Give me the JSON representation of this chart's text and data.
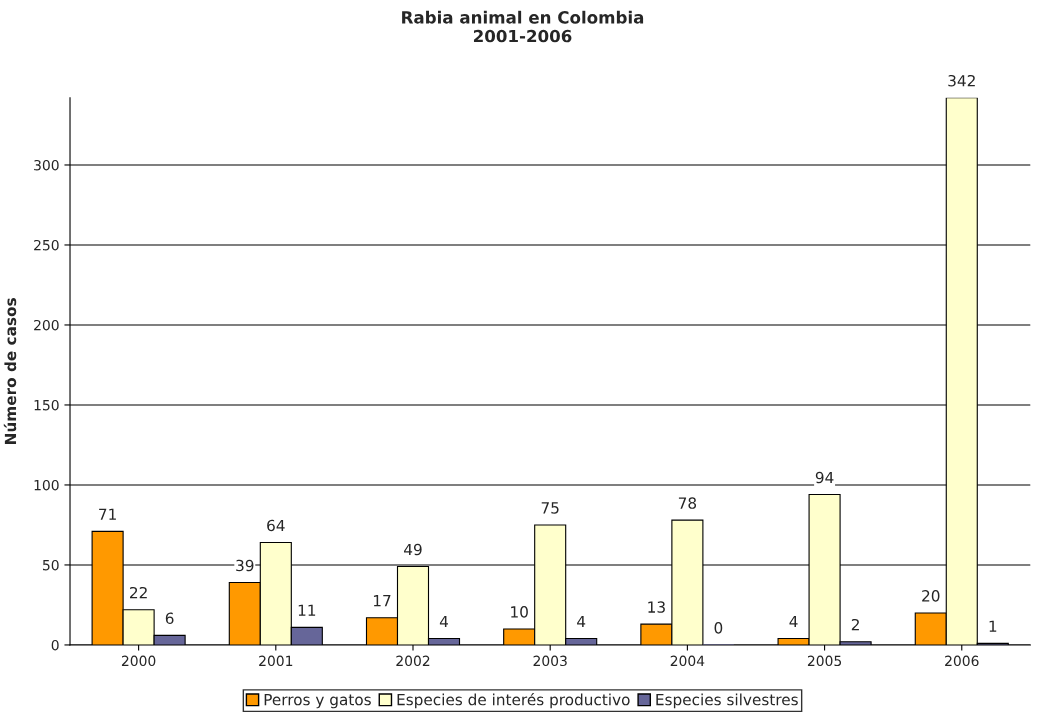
{
  "chart_data": {
    "type": "bar",
    "title": "Rabia animal en Colombia\n2001-2006",
    "ylabel": "Número de casos",
    "categories": [
      "2000",
      "2001",
      "2002",
      "2003",
      "2004",
      "2005",
      "2006"
    ],
    "series": [
      {
        "name": "Perros y gatos",
        "color": "#ff9900",
        "values": [
          71,
          39,
          17,
          10,
          13,
          4,
          20
        ]
      },
      {
        "name": "Especies de interés productivo",
        "color": "#ffffcc",
        "values": [
          22,
          64,
          49,
          75,
          78,
          94,
          342
        ]
      },
      {
        "name": "Especies silvestres",
        "color": "#666699",
        "values": [
          6,
          11,
          4,
          4,
          0,
          2,
          1
        ]
      }
    ],
    "ylim": [
      0,
      342
    ],
    "yticks": [
      0,
      50,
      100,
      150,
      200,
      250,
      300
    ],
    "grid": "y",
    "legend": "bottom",
    "data_labels": true
  }
}
